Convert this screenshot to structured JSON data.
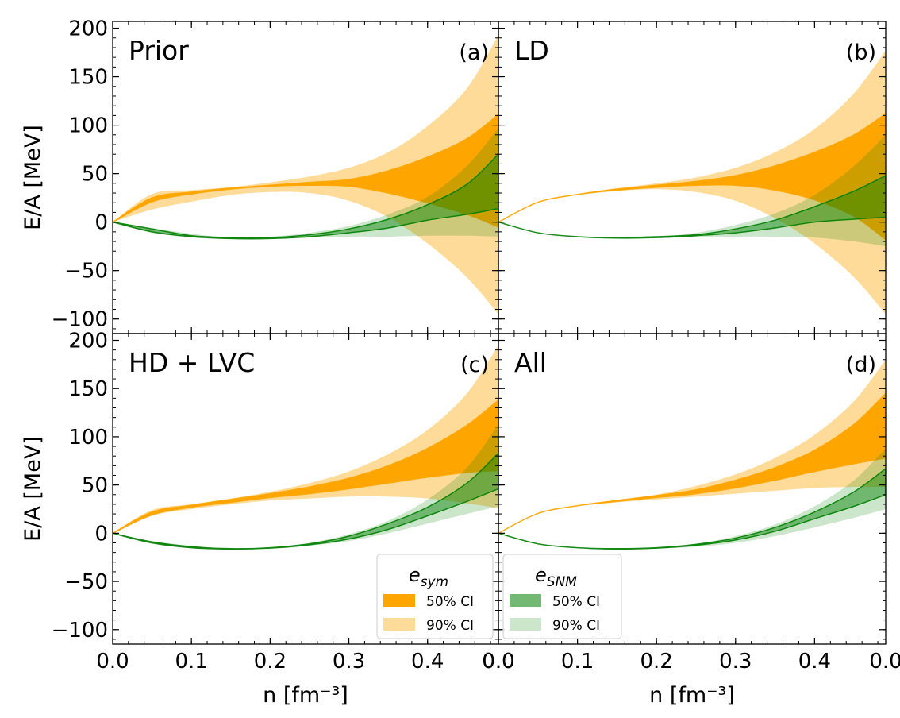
{
  "chart_data": [
    {
      "type": "area",
      "panel": "a",
      "title": "Prior",
      "tag": "(a)",
      "xlabel": "n [fm⁻³]",
      "ylabel": "E/A [MeV]",
      "xlim": [
        0.0,
        0.49
      ],
      "ylim": [
        -115,
        207
      ],
      "x": [
        0.0,
        0.05,
        0.1,
        0.15,
        0.2,
        0.25,
        0.3,
        0.35,
        0.4,
        0.45,
        0.49
      ],
      "series": [
        {
          "name": "e_sym 90% CI",
          "lower": [
            0,
            13,
            21,
            28,
            31,
            30,
            22,
            5,
            -22,
            -57,
            -95
          ],
          "upper": [
            0,
            29,
            33,
            36,
            41,
            47,
            56,
            72,
            99,
            138,
            193
          ]
        },
        {
          "name": "e_sym 50% CI",
          "lower": [
            0,
            21,
            29,
            34,
            37,
            38,
            37,
            30,
            20,
            8,
            -5
          ],
          "upper": [
            0,
            25,
            31,
            35,
            38,
            41,
            44,
            53,
            67,
            86,
            111
          ]
        },
        {
          "name": "e_SNM 90% CI",
          "lower": [
            0,
            -11,
            -15,
            -17,
            -17,
            -16,
            -15,
            -15,
            -14,
            -14,
            -15
          ],
          "upper": [
            0,
            -6,
            -12,
            -16,
            -15,
            -11,
            -4,
            8,
            26,
            58,
            97
          ]
        },
        {
          "name": "e_SNM 50% CI",
          "lower": [
            0,
            -10,
            -15,
            -17,
            -17,
            -15,
            -11,
            -6,
            2,
            8,
            14
          ],
          "upper": [
            0,
            -7,
            -14,
            -16,
            -16,
            -13,
            -7,
            3,
            18,
            39,
            70
          ]
        }
      ]
    },
    {
      "type": "area",
      "panel": "b",
      "title": "LD",
      "tag": "(b)",
      "xlabel": "n [fm⁻³]",
      "ylabel": "",
      "xlim": [
        0.0,
        0.49
      ],
      "ylim": [
        -115,
        207
      ],
      "x": [
        0.0,
        0.05,
        0.1,
        0.15,
        0.2,
        0.25,
        0.3,
        0.35,
        0.4,
        0.45,
        0.49
      ],
      "series": [
        {
          "name": "e_sym 90% CI",
          "lower": [
            0,
            20,
            28,
            32,
            34,
            31,
            22,
            4,
            -22,
            -57,
            -95
          ],
          "upper": [
            0,
            21,
            29,
            35,
            40,
            46,
            56,
            72,
            96,
            133,
            177
          ]
        },
        {
          "name": "e_sym 50% CI",
          "lower": [
            0,
            20.5,
            28.5,
            33,
            36,
            38,
            38,
            33,
            23,
            6,
            -18
          ],
          "upper": [
            0,
            20.5,
            28.5,
            34,
            38,
            42,
            48,
            58,
            72,
            90,
            112
          ]
        },
        {
          "name": "e_SNM 90% CI",
          "lower": [
            0,
            -11,
            -15,
            -16.5,
            -16,
            -15,
            -15,
            -15,
            -16,
            -20,
            -25
          ],
          "upper": [
            0,
            -11,
            -15,
            -16,
            -15,
            -11,
            -3,
            9,
            28,
            58,
            90
          ]
        },
        {
          "name": "e_SNM 50% CI",
          "lower": [
            0,
            -11,
            -15,
            -16.5,
            -16,
            -14,
            -11,
            -6,
            0,
            3,
            5
          ],
          "upper": [
            0,
            -11,
            -15,
            -16,
            -15,
            -13,
            -7,
            2,
            16,
            32,
            48
          ]
        }
      ]
    },
    {
      "type": "area",
      "panel": "c",
      "title": "HD + LVC",
      "tag": "(c)",
      "xlabel": "n [fm⁻³]",
      "ylabel": "E/A [MeV]",
      "xlim": [
        0.0,
        0.49
      ],
      "ylim": [
        -115,
        207
      ],
      "x": [
        0.0,
        0.05,
        0.1,
        0.15,
        0.2,
        0.25,
        0.3,
        0.35,
        0.4,
        0.45,
        0.49
      ],
      "series": [
        {
          "name": "e_sym 90% CI",
          "lower": [
            0,
            18,
            25,
            30,
            34,
            36,
            38,
            38,
            36,
            31,
            26
          ],
          "upper": [
            0,
            24,
            30,
            36,
            43,
            52,
            64,
            82,
            107,
            145,
            195
          ]
        },
        {
          "name": "e_sym 50% CI",
          "lower": [
            0,
            19,
            27,
            32,
            37,
            41,
            46,
            52,
            58,
            63,
            65
          ],
          "upper": [
            0,
            22,
            29,
            35,
            41,
            48,
            57,
            70,
            88,
            112,
            138
          ]
        },
        {
          "name": "e_SNM 90% CI",
          "lower": [
            0,
            -11,
            -15,
            -16.5,
            -16,
            -13,
            -8,
            0,
            10,
            20,
            28
          ],
          "upper": [
            0,
            -8,
            -13,
            -16,
            -15,
            -10,
            -1,
            13,
            35,
            68,
            113
          ]
        },
        {
          "name": "e_SNM 50% CI",
          "lower": [
            0,
            -10,
            -15,
            -16.5,
            -15.5,
            -12,
            -6,
            4,
            18,
            33,
            46
          ],
          "upper": [
            0,
            -9,
            -14,
            -16,
            -15,
            -11,
            -3,
            10,
            27,
            52,
            83
          ]
        }
      ]
    },
    {
      "type": "area",
      "panel": "d",
      "title": "All",
      "tag": "(d)",
      "xlabel": "n [fm⁻³]",
      "ylabel": "",
      "xlim": [
        0.0,
        0.49
      ],
      "ylim": [
        -115,
        207
      ],
      "x": [
        0.0,
        0.05,
        0.1,
        0.15,
        0.2,
        0.25,
        0.3,
        0.35,
        0.4,
        0.45,
        0.49
      ],
      "series": [
        {
          "name": "e_sym 90% CI",
          "lower": [
            0,
            20,
            28,
            32,
            35,
            38,
            41,
            44,
            47,
            48,
            48
          ],
          "upper": [
            0,
            21,
            29,
            34,
            40,
            49,
            61,
            78,
            102,
            137,
            180
          ]
        },
        {
          "name": "e_sym 50% CI",
          "lower": [
            0,
            20.5,
            28.5,
            33,
            37,
            41,
            47,
            55,
            64,
            72,
            78
          ],
          "upper": [
            0,
            20.5,
            28.5,
            34,
            39,
            45,
            55,
            68,
            86,
            113,
            145
          ]
        },
        {
          "name": "e_SNM 90% CI",
          "lower": [
            0,
            -11,
            -15,
            -16.5,
            -16,
            -14,
            -10,
            -3,
            6,
            16,
            25
          ],
          "upper": [
            0,
            -11,
            -15,
            -16,
            -15,
            -11,
            -3,
            9,
            28,
            55,
            88
          ]
        },
        {
          "name": "e_SNM 50% CI",
          "lower": [
            0,
            -11,
            -15,
            -16.5,
            -15.5,
            -12.5,
            -7,
            2,
            15,
            28,
            40
          ],
          "upper": [
            0,
            -11,
            -15,
            -16,
            -15,
            -11.5,
            -5,
            6,
            22,
            43,
            67
          ]
        }
      ]
    }
  ],
  "ticks": {
    "x": [
      {
        "value": 0.0,
        "label": "0.0"
      },
      {
        "value": 0.1,
        "label": "0.1"
      },
      {
        "value": 0.2,
        "label": "0.2"
      },
      {
        "value": 0.3,
        "label": "0.3"
      },
      {
        "value": 0.4,
        "label": "0.4"
      }
    ],
    "y": [
      {
        "value": -100,
        "label": "−100"
      },
      {
        "value": -50,
        "label": "−50"
      },
      {
        "value": 0,
        "label": "0"
      },
      {
        "value": 50,
        "label": "50"
      },
      {
        "value": 100,
        "label": "100"
      },
      {
        "value": 150,
        "label": "150"
      },
      {
        "value": 200,
        "label": "200"
      }
    ]
  },
  "legends": [
    {
      "title": "e",
      "title_sub": "sym",
      "entries": [
        {
          "label": "50% CI",
          "color": "#ffa500",
          "opacity": 1.0
        },
        {
          "label": "90% CI",
          "color": "#ffa500",
          "opacity": 0.4
        }
      ]
    },
    {
      "title": "e",
      "title_sub": "SNM",
      "entries": [
        {
          "label": "50% CI",
          "color": "#008000",
          "opacity": 0.55
        },
        {
          "label": "90% CI",
          "color": "#008000",
          "opacity": 0.2
        }
      ]
    }
  ],
  "colors": {
    "esym": "#ffa500",
    "esnm": "#008000"
  }
}
